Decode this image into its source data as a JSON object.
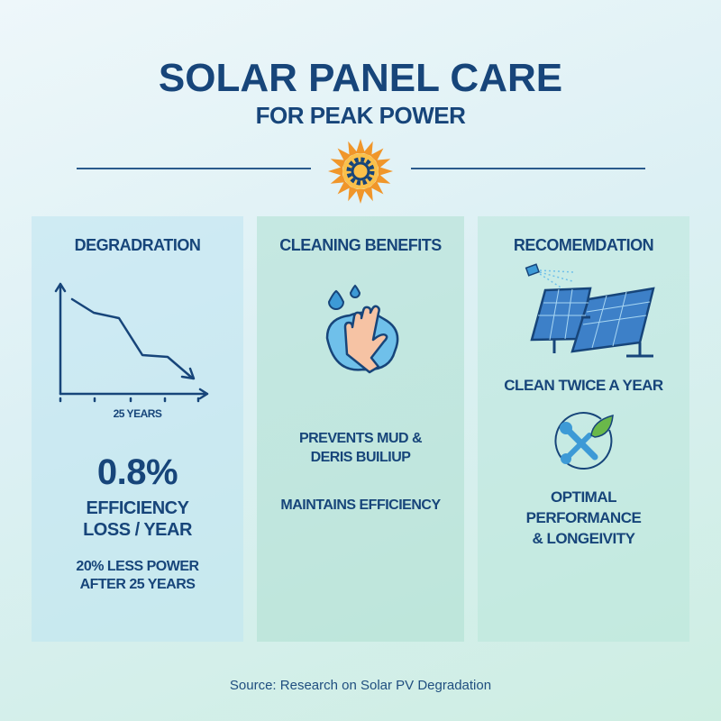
{
  "header": {
    "title": "SOLAR PANEL CARE",
    "subtitle": "FOR PEAK POWER",
    "icon": "sun-gear-icon"
  },
  "colors": {
    "navy": "#17457a",
    "orange": "#f0962a",
    "blue": "#3d9ad6",
    "green": "#6ab84a"
  },
  "panels": [
    {
      "title": "DEGRADRATION",
      "axis_label": "25 YEARS",
      "stat": "0.8%",
      "stat_label_1": "EFFICIENCY",
      "stat_label_2": "LOSS / YEAR",
      "note_1": "20% LESS POWER",
      "note_2": "AFTER 25 YEARS",
      "icon": "declining-line-chart-icon"
    },
    {
      "title": "CLEANING BENEFITS",
      "line_1": "PREVENTS MUD &",
      "line_2": "DERIS BUILIUP",
      "line_3": "MAINTAINS EFFICIENCY",
      "icon": "hand-wiping-icon"
    },
    {
      "title": "RECOMEMDATION",
      "line_1": "CLEAN TWICE A YEAR",
      "line_2": "OPTIMAL",
      "line_3": "PERFORMANCE",
      "line_4": "& LONGEIVITY",
      "icons": [
        "solar-panel-spray-icon",
        "wrench-leaf-icon"
      ]
    }
  ],
  "footer": {
    "source": "Source: Research on Solar PV Degradation"
  }
}
